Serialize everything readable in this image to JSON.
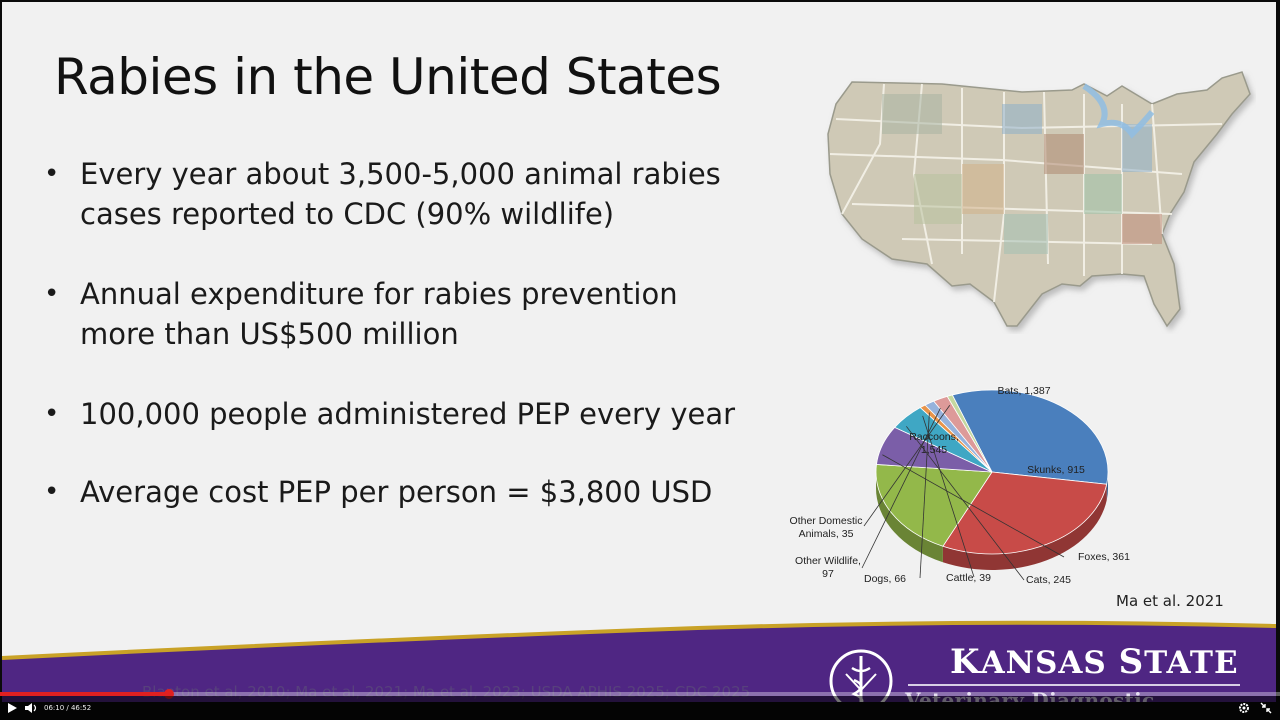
{
  "slide": {
    "title": "Rabies in the United States",
    "bullets": [
      {
        "line1": "Every year about 3,500-5,000 animal rabies",
        "line2": "cases reported to CDC (90% wildlife)"
      },
      {
        "line1": "Annual expenditure for rabies prevention",
        "line2": "more than US$500 million"
      },
      {
        "line1": "100,000 people administered PEP every year",
        "line2": ""
      },
      {
        "line1": "Average cost PEP per person = $3,800 USD",
        "line2": ""
      }
    ],
    "citation": "Ma et al. 2021",
    "sources": "Blanton et al, 2010; Ma et al, 2021; Ma et al, 2023; USDA APHIS 2025; CDC 2025"
  },
  "chart_data": {
    "type": "pie",
    "slices": [
      {
        "label": "Raccoons,",
        "label2": "1,545",
        "value": 1545,
        "color": "#4a7fbd"
      },
      {
        "label": "Bats, 1,387",
        "label2": "",
        "value": 1387,
        "color": "#c84b48"
      },
      {
        "label": "Skunks, 915",
        "label2": "",
        "value": 915,
        "color": "#93b84a"
      },
      {
        "label": "Foxes, 361",
        "label2": "",
        "value": 361,
        "color": "#7b5ea8"
      },
      {
        "label": "Cats, 245",
        "label2": "",
        "value": 245,
        "color": "#3fa7c4"
      },
      {
        "label": "Cattle, 39",
        "label2": "",
        "value": 39,
        "color": "#e8944a"
      },
      {
        "label": "Dogs, 66",
        "label2": "",
        "value": 66,
        "color": "#96b2dc"
      },
      {
        "label": "Other Wildlife,",
        "label2": "97",
        "value": 97,
        "color": "#dd9a99"
      },
      {
        "label": "Other Domestic",
        "label2": "Animals, 35",
        "value": 35,
        "color": "#c4d8a0"
      }
    ]
  },
  "banner": {
    "logo_name_k": "K",
    "logo_name_rest": "ANSAS ",
    "logo_name_s": "S",
    "logo_name_rest2": "TATE",
    "logo_sub": "Veterinary Diagnostic Laboratory",
    "colors": {
      "purple": "#4f2683",
      "gold": "#c9a227"
    }
  },
  "player": {
    "current_time": "06:10",
    "duration": "46:52",
    "time_display": "06:10 / 46:52",
    "progress": 0.132,
    "icons": [
      "play-icon",
      "volume-icon",
      "settings-icon",
      "fullscreen-exit-icon"
    ]
  }
}
